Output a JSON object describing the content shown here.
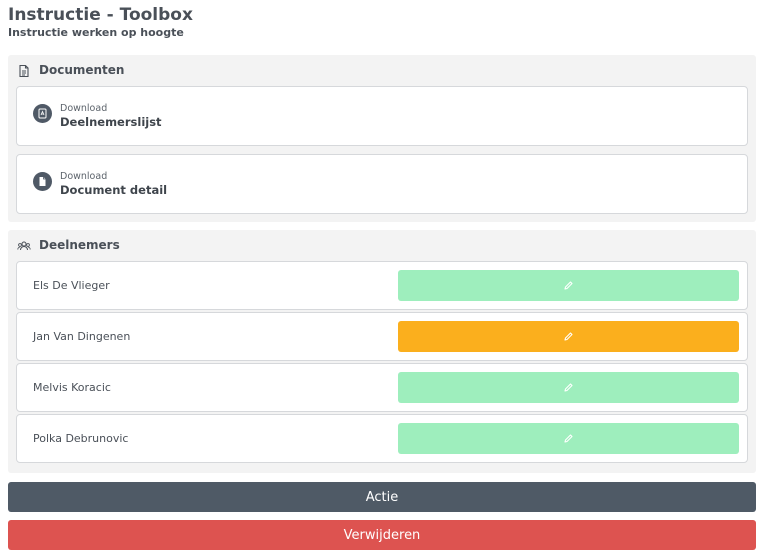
{
  "header": {
    "title": "Instructie - Toolbox",
    "subtitle": "Instructie werken op hoogte"
  },
  "documents": {
    "heading": "Documenten",
    "icon": "document-icon",
    "items": [
      {
        "label": "Download",
        "name": "Deelnemerslijst",
        "icon": "pdf-icon"
      },
      {
        "label": "Download",
        "name": "Document detail",
        "icon": "file-icon"
      }
    ]
  },
  "participants": {
    "heading": "Deelnemers",
    "icon": "people-icon",
    "rows": [
      {
        "name": "Els De Vlieger",
        "status_color": "#9eeebd",
        "button_icon": "pencil-icon"
      },
      {
        "name": "Jan Van Dingenen",
        "status_color": "#fbaf1d",
        "button_icon": "pencil-icon"
      },
      {
        "name": "Melvis Koracic",
        "status_color": "#9eeebd",
        "button_icon": "pencil-icon"
      },
      {
        "name": "Polka Debrunovic",
        "status_color": "#9eeebd",
        "button_icon": "pencil-icon"
      }
    ]
  },
  "actions": {
    "actie_label": "Actie",
    "delete_label": "Verwijderen"
  },
  "colors": {
    "primary_dark": "#4f5a66",
    "danger": "#dd5350",
    "success_light": "#9eeebd",
    "warning": "#fbaf1d"
  }
}
